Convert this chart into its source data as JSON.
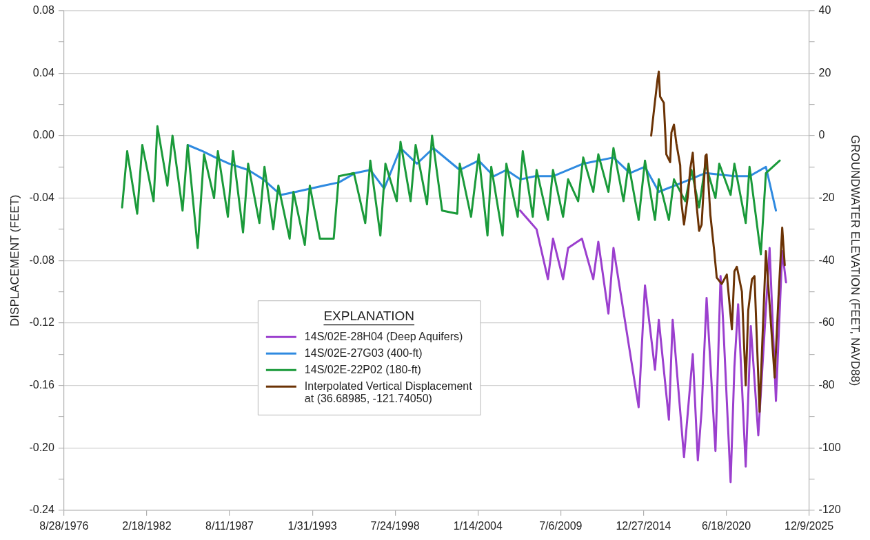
{
  "chart_data": {
    "type": "line",
    "xlabel": null,
    "ylabel": "DISPLACEMENT (FEET)",
    "y2label": "GROUNDWATER ELEVATION (FEET, NAVD88)",
    "legend_title": "EXPLANATION",
    "legend": "center",
    "grid": "y",
    "marker": "none",
    "xlim": [
      "1976-08-28",
      "2025-12-09"
    ],
    "xticks": [
      {
        "value": "1976-08-28",
        "label": "8/28/1976"
      },
      {
        "value": "1982-02-18",
        "label": "2/18/1982"
      },
      {
        "value": "1987-08-11",
        "label": "8/11/1987"
      },
      {
        "value": "1993-01-31",
        "label": "1/31/1993"
      },
      {
        "value": "1998-07-24",
        "label": "7/24/1998"
      },
      {
        "value": "2004-01-14",
        "label": "1/14/2004"
      },
      {
        "value": "2009-07-06",
        "label": "7/6/2009"
      },
      {
        "value": "2014-12-27",
        "label": "12/27/2014"
      },
      {
        "value": "2020-06-18",
        "label": "6/18/2020"
      },
      {
        "value": "2025-12-09",
        "label": "12/9/2025"
      }
    ],
    "ylim": [
      -0.24,
      0.08
    ],
    "yticks": [
      -0.24,
      {
        "value": -0.22,
        "label": null
      },
      {
        "value": -0.2,
        "label": "-0.20"
      },
      {
        "value": -0.18,
        "label": null
      },
      -0.16,
      {
        "value": -0.14,
        "label": null
      },
      -0.12,
      {
        "value": -0.1,
        "label": null
      },
      -0.08,
      {
        "value": -0.06,
        "label": null
      },
      -0.04,
      {
        "value": -0.02,
        "label": null
      },
      {
        "value": 0,
        "label": "0.00"
      },
      {
        "value": 0.02,
        "label": null
      },
      0.04,
      {
        "value": 0.06,
        "label": null
      },
      0.08
    ],
    "y2lim": [
      -120,
      40
    ],
    "y2ticks": [
      -120,
      {
        "value": -110,
        "label": null
      },
      -100,
      {
        "value": -90,
        "label": null
      },
      -80,
      {
        "value": -70,
        "label": null
      },
      -60,
      {
        "value": -50,
        "label": null
      },
      -40,
      {
        "value": -30,
        "label": null
      },
      -20,
      {
        "value": -10,
        "label": null
      },
      0,
      {
        "value": 10,
        "label": null
      },
      20,
      {
        "value": 30,
        "label": null
      },
      40
    ],
    "series": [
      {
        "name": "14S/02E-28H04 (Deep Aquifers)",
        "color": "#9b3fce",
        "axis": "y2",
        "x": [
          "2006-11",
          "2007-12",
          "2008-09",
          "2009-01",
          "2009-09",
          "2010-01",
          "2010-12",
          "2011-09",
          "2012-01",
          "2012-09",
          "2013-01",
          "2014-09",
          "2015-02",
          "2015-10",
          "2016-01",
          "2016-09",
          "2016-12",
          "2017-09",
          "2018-04",
          "2018-08",
          "2018-11",
          "2019-03",
          "2019-10",
          "2020-02",
          "2020-04",
          "2020-10",
          "2021-01",
          "2021-04",
          "2021-10",
          "2022-02",
          "2022-08",
          "2023-05",
          "2023-10",
          "2024-03",
          "2024-06"
        ],
        "values": [
          -24,
          -30,
          -46,
          -33,
          -46,
          -36,
          -33,
          -46,
          -34,
          -57,
          -36,
          -87,
          -48,
          -75,
          -59,
          -91,
          -59,
          -103,
          -70,
          -104,
          -88,
          -52,
          -101,
          -45,
          -59,
          -111,
          -74,
          -54,
          -106,
          -61,
          -96,
          -36,
          -85,
          -37,
          -47
        ]
      },
      {
        "name": "14S/02E-27G03 (400-ft)",
        "color": "#2f8ae0",
        "axis": "y2",
        "x": [
          "1984-11",
          "1985-11",
          "1986-09",
          "1987-08",
          "1988-11",
          "1989-11",
          "1991-01",
          "1992-01",
          "1993-11",
          "1994-11",
          "1995-12",
          "1996-12",
          "1997-11",
          "1998-12",
          "2000-01",
          "2001-02",
          "2002-11",
          "2004-02",
          "2005-02",
          "2005-12",
          "2006-11",
          "2007-11",
          "2009-01",
          "2011-01",
          "2013-01",
          "2014-02",
          "2015-02",
          "2016-01",
          "2017-08",
          "2019-02",
          "2021-01",
          "2022-01",
          "2023-02",
          "2023-10"
        ],
        "values": [
          -3,
          -5,
          -7,
          -9,
          -11,
          -14,
          -19,
          -18,
          -16,
          -15,
          -12,
          -11,
          -17,
          -4,
          -9,
          -4,
          -11,
          -8,
          -13,
          -11,
          -14,
          -13,
          -13,
          -9,
          -7,
          -12,
          -10,
          -18,
          -15,
          -12,
          -13,
          -13,
          -10,
          -24
        ]
      },
      {
        "name": "14S/02E-22P02 (180-ft)",
        "color": "#1a9a3a",
        "axis": "y2",
        "x": [
          "1980-07",
          "1980-11",
          "1981-07",
          "1981-11",
          "1982-08",
          "1982-11",
          "1983-07",
          "1983-11",
          "1984-07",
          "1984-11",
          "1985-07",
          "1985-12",
          "1986-08",
          "1986-11",
          "1987-07",
          "1987-11",
          "1988-07",
          "1988-11",
          "1989-08",
          "1989-12",
          "1990-07",
          "1990-11",
          "1991-08",
          "1991-11",
          "1992-08",
          "1992-12",
          "1993-08",
          "1994-07",
          "1994-11",
          "1995-11",
          "1996-08",
          "1996-12",
          "1997-08",
          "1997-12",
          "1998-09",
          "1998-12",
          "1999-08",
          "1999-12",
          "2000-09",
          "2001-01",
          "2001-09",
          "2002-09",
          "2002-11",
          "2003-08",
          "2004-02",
          "2004-09",
          "2004-12",
          "2005-09",
          "2005-12",
          "2006-09",
          "2007-01",
          "2007-09",
          "2007-12",
          "2008-09",
          "2009-01",
          "2009-09",
          "2010-01",
          "2010-09",
          "2011-01",
          "2011-09",
          "2012-01",
          "2012-09",
          "2013-01",
          "2013-09",
          "2014-01",
          "2014-09",
          "2015-02",
          "2015-10",
          "2016-01",
          "2016-09",
          "2017-01",
          "2017-10",
          "2018-03",
          "2018-09",
          "2019-02",
          "2019-10",
          "2020-01",
          "2020-10",
          "2021-01",
          "2021-10",
          "2022-01",
          "2022-10",
          "2023-02",
          "2024-01"
        ],
        "values": [
          -23,
          -5,
          -25,
          -3,
          -21,
          3,
          -16,
          0,
          -24,
          -3,
          -36,
          -6,
          -20,
          -5,
          -26,
          -5,
          -31,
          -9,
          -28,
          -10,
          -30,
          -16,
          -33,
          -18,
          -35,
          -16,
          -33,
          -33,
          -13,
          -12,
          -28,
          -8,
          -32,
          -9,
          -21,
          -2,
          -21,
          -3,
          -22,
          0,
          -24,
          -25,
          -9,
          -26,
          -6,
          -32,
          -10,
          -32,
          -9,
          -26,
          -5,
          -26,
          -11,
          -27,
          -11,
          -26,
          -14,
          -21,
          -7,
          -18,
          -6,
          -18,
          -4,
          -21,
          -9,
          -27,
          -8,
          -27,
          -14,
          -27,
          -14,
          -21,
          -11,
          -23,
          -9,
          -20,
          -9,
          -19,
          -9,
          -28,
          -10,
          -38,
          -12,
          -8
        ]
      },
      {
        "name": "Interpolated Vertical Displacement\nat (36.68985, -121.74050)",
        "color": "#6b3305",
        "x": [
          "2015-07",
          "2015-09",
          "2015-12",
          "2016-01",
          "2016-02",
          "2016-05",
          "2016-07",
          "2016-10",
          "2016-11",
          "2017-01",
          "2017-03",
          "2017-06",
          "2017-07",
          "2017-09",
          "2017-12",
          "2018-02",
          "2018-04",
          "2018-06",
          "2018-09",
          "2018-11",
          "2019-02",
          "2019-03",
          "2019-06",
          "2019-09",
          "2019-11",
          "2020-03",
          "2020-07",
          "2020-11",
          "2021-01",
          "2021-03",
          "2021-07",
          "2021-10",
          "2021-12",
          "2022-03",
          "2022-05",
          "2022-09",
          "2023-02",
          "2023-09",
          "2023-12",
          "2024-03",
          "2024-05"
        ],
        "values": [
          0,
          0.015,
          0.036,
          0.041,
          0.025,
          0.021,
          -0.012,
          -0.017,
          0.002,
          0.007,
          -0.005,
          -0.019,
          -0.043,
          -0.057,
          -0.039,
          -0.021,
          -0.011,
          -0.036,
          -0.061,
          -0.057,
          -0.013,
          -0.012,
          -0.051,
          -0.074,
          -0.091,
          -0.095,
          -0.089,
          -0.124,
          -0.087,
          -0.084,
          -0.1,
          -0.16,
          -0.112,
          -0.092,
          -0.09,
          -0.177,
          -0.074,
          -0.155,
          -0.104,
          -0.059,
          -0.083
        ]
      }
    ]
  }
}
